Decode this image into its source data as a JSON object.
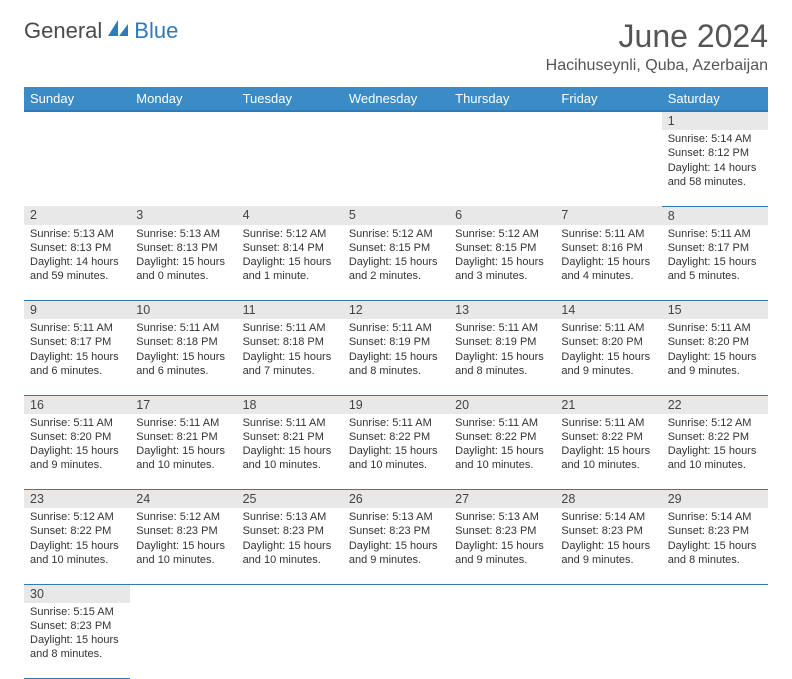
{
  "logo": {
    "first": "General",
    "second": "Blue"
  },
  "title": "June 2024",
  "location": "Hacihuseynli, Quba, Azerbaijan",
  "colors": {
    "header_bg": "#3b8bc7",
    "header_border": "#2f7ab8",
    "daynum_bg": "#e8e8e8",
    "text": "#333333",
    "logo_gray": "#4a4a4a",
    "logo_blue": "#2f7ab8"
  },
  "weekdays": [
    "Sunday",
    "Monday",
    "Tuesday",
    "Wednesday",
    "Thursday",
    "Friday",
    "Saturday"
  ],
  "weeks": [
    [
      null,
      null,
      null,
      null,
      null,
      null,
      {
        "n": "1",
        "sunrise": "Sunrise: 5:14 AM",
        "sunset": "Sunset: 8:12 PM",
        "daylight": "Daylight: 14 hours and 58 minutes."
      }
    ],
    [
      {
        "n": "2",
        "sunrise": "Sunrise: 5:13 AM",
        "sunset": "Sunset: 8:13 PM",
        "daylight": "Daylight: 14 hours and 59 minutes."
      },
      {
        "n": "3",
        "sunrise": "Sunrise: 5:13 AM",
        "sunset": "Sunset: 8:13 PM",
        "daylight": "Daylight: 15 hours and 0 minutes."
      },
      {
        "n": "4",
        "sunrise": "Sunrise: 5:12 AM",
        "sunset": "Sunset: 8:14 PM",
        "daylight": "Daylight: 15 hours and 1 minute."
      },
      {
        "n": "5",
        "sunrise": "Sunrise: 5:12 AM",
        "sunset": "Sunset: 8:15 PM",
        "daylight": "Daylight: 15 hours and 2 minutes."
      },
      {
        "n": "6",
        "sunrise": "Sunrise: 5:12 AM",
        "sunset": "Sunset: 8:15 PM",
        "daylight": "Daylight: 15 hours and 3 minutes."
      },
      {
        "n": "7",
        "sunrise": "Sunrise: 5:11 AM",
        "sunset": "Sunset: 8:16 PM",
        "daylight": "Daylight: 15 hours and 4 minutes."
      },
      {
        "n": "8",
        "sunrise": "Sunrise: 5:11 AM",
        "sunset": "Sunset: 8:17 PM",
        "daylight": "Daylight: 15 hours and 5 minutes."
      }
    ],
    [
      {
        "n": "9",
        "sunrise": "Sunrise: 5:11 AM",
        "sunset": "Sunset: 8:17 PM",
        "daylight": "Daylight: 15 hours and 6 minutes."
      },
      {
        "n": "10",
        "sunrise": "Sunrise: 5:11 AM",
        "sunset": "Sunset: 8:18 PM",
        "daylight": "Daylight: 15 hours and 6 minutes."
      },
      {
        "n": "11",
        "sunrise": "Sunrise: 5:11 AM",
        "sunset": "Sunset: 8:18 PM",
        "daylight": "Daylight: 15 hours and 7 minutes."
      },
      {
        "n": "12",
        "sunrise": "Sunrise: 5:11 AM",
        "sunset": "Sunset: 8:19 PM",
        "daylight": "Daylight: 15 hours and 8 minutes."
      },
      {
        "n": "13",
        "sunrise": "Sunrise: 5:11 AM",
        "sunset": "Sunset: 8:19 PM",
        "daylight": "Daylight: 15 hours and 8 minutes."
      },
      {
        "n": "14",
        "sunrise": "Sunrise: 5:11 AM",
        "sunset": "Sunset: 8:20 PM",
        "daylight": "Daylight: 15 hours and 9 minutes."
      },
      {
        "n": "15",
        "sunrise": "Sunrise: 5:11 AM",
        "sunset": "Sunset: 8:20 PM",
        "daylight": "Daylight: 15 hours and 9 minutes."
      }
    ],
    [
      {
        "n": "16",
        "sunrise": "Sunrise: 5:11 AM",
        "sunset": "Sunset: 8:20 PM",
        "daylight": "Daylight: 15 hours and 9 minutes."
      },
      {
        "n": "17",
        "sunrise": "Sunrise: 5:11 AM",
        "sunset": "Sunset: 8:21 PM",
        "daylight": "Daylight: 15 hours and 10 minutes."
      },
      {
        "n": "18",
        "sunrise": "Sunrise: 5:11 AM",
        "sunset": "Sunset: 8:21 PM",
        "daylight": "Daylight: 15 hours and 10 minutes."
      },
      {
        "n": "19",
        "sunrise": "Sunrise: 5:11 AM",
        "sunset": "Sunset: 8:22 PM",
        "daylight": "Daylight: 15 hours and 10 minutes."
      },
      {
        "n": "20",
        "sunrise": "Sunrise: 5:11 AM",
        "sunset": "Sunset: 8:22 PM",
        "daylight": "Daylight: 15 hours and 10 minutes."
      },
      {
        "n": "21",
        "sunrise": "Sunrise: 5:11 AM",
        "sunset": "Sunset: 8:22 PM",
        "daylight": "Daylight: 15 hours and 10 minutes."
      },
      {
        "n": "22",
        "sunrise": "Sunrise: 5:12 AM",
        "sunset": "Sunset: 8:22 PM",
        "daylight": "Daylight: 15 hours and 10 minutes."
      }
    ],
    [
      {
        "n": "23",
        "sunrise": "Sunrise: 5:12 AM",
        "sunset": "Sunset: 8:22 PM",
        "daylight": "Daylight: 15 hours and 10 minutes."
      },
      {
        "n": "24",
        "sunrise": "Sunrise: 5:12 AM",
        "sunset": "Sunset: 8:23 PM",
        "daylight": "Daylight: 15 hours and 10 minutes."
      },
      {
        "n": "25",
        "sunrise": "Sunrise: 5:13 AM",
        "sunset": "Sunset: 8:23 PM",
        "daylight": "Daylight: 15 hours and 10 minutes."
      },
      {
        "n": "26",
        "sunrise": "Sunrise: 5:13 AM",
        "sunset": "Sunset: 8:23 PM",
        "daylight": "Daylight: 15 hours and 9 minutes."
      },
      {
        "n": "27",
        "sunrise": "Sunrise: 5:13 AM",
        "sunset": "Sunset: 8:23 PM",
        "daylight": "Daylight: 15 hours and 9 minutes."
      },
      {
        "n": "28",
        "sunrise": "Sunrise: 5:14 AM",
        "sunset": "Sunset: 8:23 PM",
        "daylight": "Daylight: 15 hours and 9 minutes."
      },
      {
        "n": "29",
        "sunrise": "Sunrise: 5:14 AM",
        "sunset": "Sunset: 8:23 PM",
        "daylight": "Daylight: 15 hours and 8 minutes."
      }
    ],
    [
      {
        "n": "30",
        "sunrise": "Sunrise: 5:15 AM",
        "sunset": "Sunset: 8:23 PM",
        "daylight": "Daylight: 15 hours and 8 minutes."
      },
      null,
      null,
      null,
      null,
      null,
      null
    ]
  ]
}
